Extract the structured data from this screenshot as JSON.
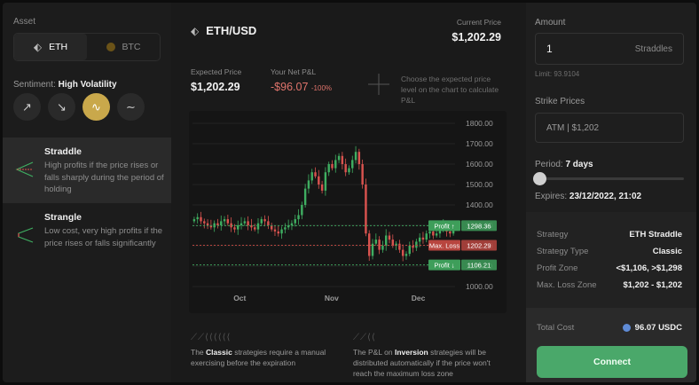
{
  "left": {
    "asset_label": "Asset",
    "assets": [
      {
        "label": "ETH",
        "active": true,
        "icon": "eth-icon"
      },
      {
        "label": "BTC",
        "active": false,
        "icon": "btc-icon"
      }
    ],
    "sentiment_prefix": "Sentiment:",
    "sentiment_value": "High Volatility",
    "sentiment_buttons": [
      "arrow-up-right-icon",
      "arrow-down-right-icon",
      "wave-icon",
      "tilde-icon"
    ],
    "strategies": [
      {
        "title": "Straddle",
        "desc": "High profits if the price rises or falls sharply during the period of holding",
        "active": true
      },
      {
        "title": "Strangle",
        "desc": "Low cost, very high profits if the price rises or falls significantly",
        "active": false
      }
    ]
  },
  "center": {
    "pair": "ETH/USD",
    "current_price_label": "Current Price",
    "current_price": "$1,202.29",
    "expected_price_label": "Expected Price",
    "expected_price": "$1,202.29",
    "pnl_label": "Your Net P&L",
    "pnl_value": "-$96.07",
    "pnl_pct": "-100%",
    "chart_hint": "Choose the expected price level on the chart to calculate P&L",
    "footer": {
      "classic_icons": "⟋⟋⟨⟨⟨⟨⟨⟨",
      "classic_pre": "The",
      "classic_bold": "Classic",
      "classic_post": "strategies require a manual exercising before the expiration",
      "inversion_icons": "⟋⟋⟨⟨",
      "inversion_pre": "The P&L on",
      "inversion_bold": "Inversion",
      "inversion_post": "strategies will be distributed automatically if the price won't reach the maximum loss zone"
    }
  },
  "chart_data": {
    "type": "candlestick",
    "x_ticks": [
      "Oct",
      "Nov",
      "Dec"
    ],
    "y_ticks": [
      "1800.00",
      "1700.00",
      "1600.00",
      "1500.00",
      "1400.00",
      "1300.00",
      "1200.00",
      "1100.00",
      "1000.00"
    ],
    "ylim": [
      1000,
      1800
    ],
    "closes": [
      1330,
      1340,
      1320,
      1310,
      1300,
      1290,
      1310,
      1300,
      1320,
      1330,
      1310,
      1290,
      1280,
      1300,
      1310,
      1320,
      1300,
      1290,
      1280,
      1310,
      1330,
      1320,
      1300,
      1280,
      1270,
      1260,
      1280,
      1290,
      1300,
      1310,
      1330,
      1350,
      1400,
      1480,
      1520,
      1560,
      1540,
      1500,
      1470,
      1560,
      1600,
      1580,
      1620,
      1640,
      1600,
      1560,
      1580,
      1620,
      1660,
      1600,
      1500,
      1260,
      1150,
      1210,
      1230,
      1180,
      1200,
      1250,
      1230,
      1200,
      1210,
      1180,
      1150,
      1160,
      1200,
      1190,
      1220,
      1240,
      1230,
      1260,
      1270,
      1250,
      1260,
      1280,
      1300,
      1270,
      1260,
      1280
    ],
    "levels": [
      {
        "label": "Profit ↑",
        "value": "1298.36",
        "color": "#3e9e5a"
      },
      {
        "label": "Max. Loss",
        "value": "1202.29",
        "color": "#b8453f"
      },
      {
        "label": "Profit ↓",
        "value": "1106.21",
        "color": "#3e9e5a"
      }
    ],
    "colors": {
      "up": "#3fae61",
      "down": "#d9534f"
    }
  },
  "right": {
    "amount_label": "Amount",
    "amount_value": "1",
    "amount_unit": "Straddles",
    "limit": "Limit: 93.9104",
    "strike_label": "Strike Prices",
    "strike_value": "ATM | $1,202",
    "period_prefix": "Period:",
    "period_value": "7 days",
    "period_fraction": 0.0,
    "expires_prefix": "Expires:",
    "expires_value": "23/12/2022, 21:02",
    "summary": [
      {
        "k": "Strategy",
        "v": "ETH Straddle"
      },
      {
        "k": "Strategy Type",
        "v": "Classic"
      },
      {
        "k": "Profit Zone",
        "v": "<$1,106, >$1,298"
      },
      {
        "k": "Max. Loss Zone",
        "v": "$1,202 - $1,202"
      }
    ],
    "total_label": "Total Cost",
    "total_value": "96.07 USDC",
    "connect_label": "Connect"
  }
}
